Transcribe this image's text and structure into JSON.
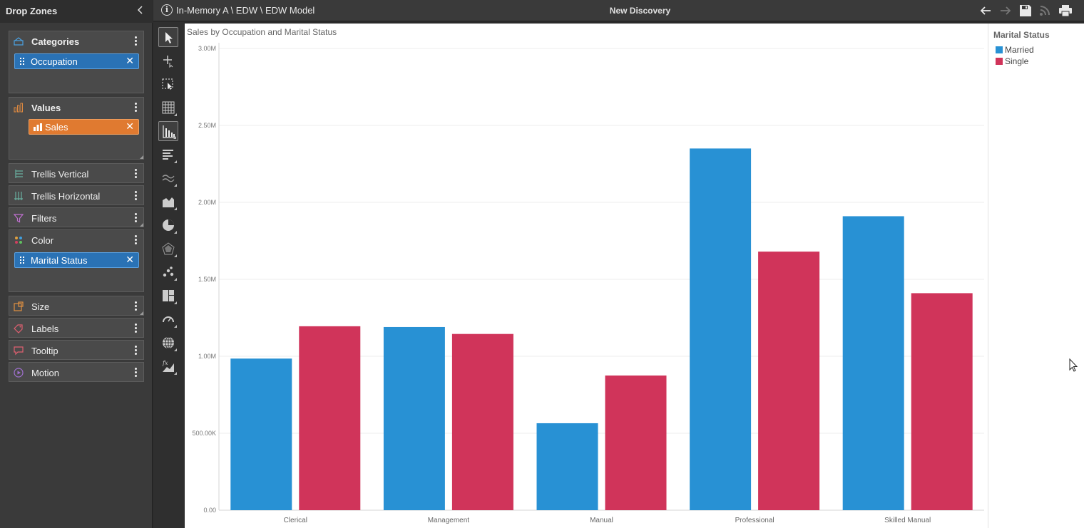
{
  "dropzones": {
    "title": "Drop Zones",
    "zones": {
      "categories": {
        "label": "Categories",
        "field": "Occupation"
      },
      "values": {
        "label": "Values",
        "field": "Sales"
      },
      "trellis_vertical": {
        "label": "Trellis Vertical"
      },
      "trellis_horizontal": {
        "label": "Trellis Horizontal"
      },
      "filters": {
        "label": "Filters"
      },
      "color": {
        "label": "Color",
        "field": "Marital Status"
      },
      "size": {
        "label": "Size"
      },
      "labels": {
        "label": "Labels"
      },
      "tooltip": {
        "label": "Tooltip"
      },
      "motion": {
        "label": "Motion"
      }
    }
  },
  "header": {
    "path": "In-Memory A \\ EDW \\ EDW Model",
    "title": "New Discovery"
  },
  "toolbar_icons": [
    "back-arrow-icon",
    "forward-arrow-icon",
    "save-icon",
    "rss-icon",
    "print-icon"
  ],
  "chart_tools": [
    "pointer",
    "add-point",
    "lasso-select",
    "grid-chart",
    "column-chart",
    "bar-chart",
    "line-chart",
    "area-chart",
    "pie-chart",
    "radar-chart",
    "scatter-chart",
    "treemap-chart",
    "gauge-chart",
    "map-chart",
    "formula-chart"
  ],
  "legend": {
    "title": "Marital Status",
    "items": [
      {
        "label": "Married",
        "color": "#2891d4"
      },
      {
        "label": "Single",
        "color": "#d0345a"
      }
    ]
  },
  "chart_data": {
    "type": "bar",
    "title": "Sales by Occupation and Marital Status",
    "categories": [
      "Clerical",
      "Management",
      "Manual",
      "Professional",
      "Skilled Manual"
    ],
    "series": [
      {
        "name": "Married",
        "color": "#2891d4",
        "values": [
          985000,
          1190000,
          565000,
          2350000,
          1910000
        ]
      },
      {
        "name": "Single",
        "color": "#d0345a",
        "values": [
          1195000,
          1145000,
          875000,
          1680000,
          1410000
        ]
      }
    ],
    "ylim": [
      0,
      3000000
    ],
    "yticks": [
      {
        "value": 0,
        "label": "0.00"
      },
      {
        "value": 500000,
        "label": "500.00K"
      },
      {
        "value": 1000000,
        "label": "1.00M"
      },
      {
        "value": 1500000,
        "label": "1.50M"
      },
      {
        "value": 2000000,
        "label": "2.00M"
      },
      {
        "value": 2500000,
        "label": "2.50M"
      },
      {
        "value": 3000000,
        "label": "3.00M"
      }
    ],
    "grid": true,
    "legend_position": "right"
  }
}
